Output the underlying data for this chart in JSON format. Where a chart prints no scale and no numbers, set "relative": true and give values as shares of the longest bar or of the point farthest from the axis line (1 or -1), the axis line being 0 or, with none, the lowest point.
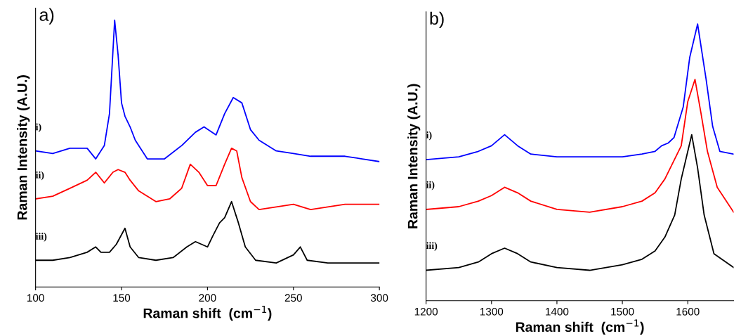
{
  "chart_data": [
    {
      "type": "line",
      "title": "a)",
      "xlabel": "Raman shift  (cm$^{−1}$)",
      "ylabel": "Raman Intensity (A.U.)",
      "relative": true,
      "xlim": [
        100,
        300
      ],
      "xticks": [
        100,
        150,
        200,
        250,
        300
      ],
      "grid": false,
      "legend": false,
      "series": [
        {
          "name": "i)",
          "color": "#0000ff",
          "x": [
            100,
            110,
            120,
            130,
            135,
            140,
            143,
            146,
            148,
            150,
            152,
            155,
            158,
            165,
            175,
            185,
            193,
            198,
            205,
            210,
            215,
            220,
            225,
            230,
            240,
            250,
            260,
            270,
            280,
            290,
            300
          ],
          "values": [
            0.51,
            0.5,
            0.52,
            0.52,
            0.48,
            0.53,
            0.65,
            1.0,
            0.87,
            0.69,
            0.64,
            0.6,
            0.55,
            0.48,
            0.48,
            0.53,
            0.58,
            0.6,
            0.57,
            0.65,
            0.71,
            0.69,
            0.59,
            0.55,
            0.51,
            0.5,
            0.49,
            0.49,
            0.49,
            0.48,
            0.47
          ]
        },
        {
          "name": "ii)",
          "color": "#ff0000",
          "x": [
            100,
            110,
            120,
            130,
            135,
            140,
            145,
            148,
            152,
            155,
            160,
            170,
            178,
            185,
            190,
            195,
            200,
            205,
            210,
            214,
            217,
            220,
            225,
            230,
            240,
            250,
            255,
            260,
            270,
            280,
            290,
            300
          ],
          "values": [
            0.33,
            0.34,
            0.37,
            0.4,
            0.43,
            0.39,
            0.43,
            0.44,
            0.43,
            0.4,
            0.36,
            0.32,
            0.33,
            0.37,
            0.46,
            0.43,
            0.38,
            0.38,
            0.46,
            0.52,
            0.51,
            0.41,
            0.32,
            0.29,
            0.3,
            0.31,
            0.3,
            0.29,
            0.3,
            0.31,
            0.31,
            0.31
          ]
        },
        {
          "name": "iii)",
          "color": "#000000",
          "x": [
            100,
            110,
            120,
            130,
            135,
            138,
            143,
            147,
            152,
            155,
            160,
            170,
            180,
            188,
            193,
            200,
            203,
            207,
            210,
            214,
            218,
            222,
            228,
            240,
            250,
            254,
            258,
            270,
            280,
            290,
            300
          ],
          "values": [
            0.1,
            0.1,
            0.11,
            0.13,
            0.15,
            0.13,
            0.13,
            0.16,
            0.22,
            0.15,
            0.11,
            0.1,
            0.11,
            0.15,
            0.17,
            0.15,
            0.19,
            0.24,
            0.26,
            0.32,
            0.24,
            0.15,
            0.1,
            0.09,
            0.12,
            0.15,
            0.1,
            0.09,
            0.09,
            0.09,
            0.09
          ]
        }
      ]
    },
    {
      "type": "line",
      "title": "b)",
      "xlabel": "Raman shift  (cm$^{−1}$)",
      "ylabel": "Raman Intensity (A.U.)",
      "relative": true,
      "xlim": [
        1200,
        1670
      ],
      "xticks": [
        1200,
        1300,
        1400,
        1500,
        1600
      ],
      "grid": false,
      "legend": false,
      "series": [
        {
          "name": "i)",
          "color": "#0000ff",
          "x": [
            1200,
            1250,
            1280,
            1300,
            1320,
            1340,
            1360,
            1400,
            1450,
            1500,
            1530,
            1550,
            1560,
            1570,
            1579,
            1593,
            1603,
            1615,
            1628,
            1638,
            1649,
            1670
          ],
          "values": [
            0.51,
            0.52,
            0.54,
            0.56,
            0.6,
            0.56,
            0.53,
            0.52,
            0.52,
            0.52,
            0.53,
            0.54,
            0.56,
            0.57,
            0.59,
            0.7,
            0.88,
            1.0,
            0.8,
            0.63,
            0.54,
            0.53
          ]
        },
        {
          "name": "ii)",
          "color": "#ff0000",
          "x": [
            1200,
            1250,
            1280,
            1300,
            1320,
            1340,
            1360,
            1400,
            1450,
            1500,
            1530,
            1550,
            1565,
            1590,
            1600,
            1611,
            1620,
            1630,
            1645,
            1670
          ],
          "values": [
            0.33,
            0.34,
            0.36,
            0.38,
            0.41,
            0.39,
            0.36,
            0.33,
            0.32,
            0.34,
            0.36,
            0.39,
            0.44,
            0.56,
            0.72,
            0.8,
            0.68,
            0.54,
            0.41,
            0.32
          ]
        },
        {
          "name": "iii)",
          "color": "#000000",
          "x": [
            1200,
            1250,
            1280,
            1300,
            1320,
            1340,
            1360,
            1400,
            1450,
            1500,
            1530,
            1550,
            1565,
            1580,
            1590,
            1600,
            1606,
            1615,
            1625,
            1640,
            1670
          ],
          "values": [
            0.11,
            0.12,
            0.14,
            0.17,
            0.19,
            0.17,
            0.14,
            0.12,
            0.11,
            0.13,
            0.15,
            0.18,
            0.23,
            0.31,
            0.44,
            0.54,
            0.6,
            0.48,
            0.31,
            0.17,
            0.12
          ]
        }
      ]
    }
  ]
}
